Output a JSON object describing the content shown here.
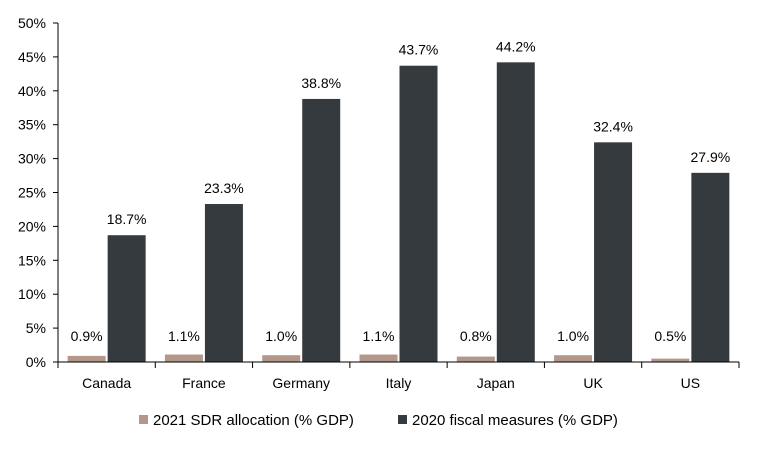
{
  "chart_data": {
    "type": "bar",
    "title": "",
    "xlabel": "",
    "ylabel": "",
    "categories": [
      "Canada",
      "France",
      "Germany",
      "Italy",
      "Japan",
      "UK",
      "US"
    ],
    "series": [
      {
        "name": "2021 SDR allocation (% GDP)",
        "color": "#B3978A",
        "values": [
          0.9,
          1.1,
          1.0,
          1.1,
          0.8,
          1.0,
          0.5
        ],
        "labels": [
          "0.9%",
          "1.1%",
          "1.0%",
          "1.1%",
          "0.8%",
          "1.0%",
          "0.5%"
        ]
      },
      {
        "name": "2020 fiscal measures (% GDP)",
        "color": "#353A3E",
        "values": [
          18.7,
          23.3,
          38.8,
          43.7,
          44.2,
          32.4,
          27.9
        ],
        "labels": [
          "18.7%",
          "23.3%",
          "38.8%",
          "43.7%",
          "44.2%",
          "32.4%",
          "27.9%"
        ]
      }
    ],
    "ylim": [
      0,
      50
    ],
    "yticks": [
      0,
      5,
      10,
      15,
      20,
      25,
      30,
      35,
      40,
      45,
      50
    ],
    "ytick_labels": [
      "0%",
      "5%",
      "10%",
      "15%",
      "20%",
      "25%",
      "30%",
      "35%",
      "40%",
      "45%",
      "50%"
    ],
    "grid": false,
    "legend": "bottom"
  }
}
